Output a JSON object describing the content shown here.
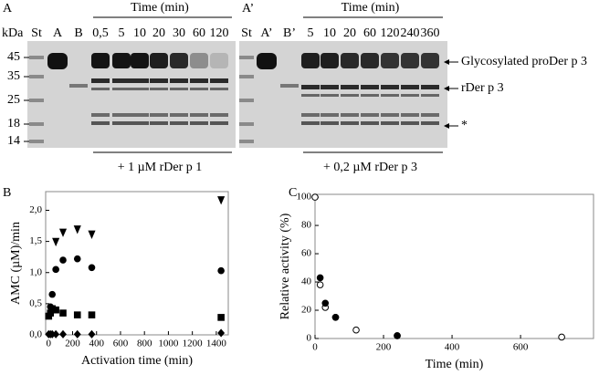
{
  "panels": {
    "A": {
      "label": "A",
      "kda": "kDa",
      "mw_markers": [
        "45",
        "35",
        "25",
        "18",
        "14"
      ],
      "time_header": "Time (min)",
      "lanes": [
        "St",
        "A",
        "B",
        "0,5",
        "5",
        "10",
        "20",
        "30",
        "60",
        "120"
      ],
      "treatment": "+ 1 µM rDer p 1"
    },
    "A_prime": {
      "label": "A’",
      "time_header": "Time (min)",
      "lanes": [
        "St",
        "A’",
        "B’",
        "5",
        "10",
        "20",
        "60",
        "120",
        "240",
        "360"
      ],
      "treatment": "+ 0,2 µM rDer p 3",
      "annotations": [
        "Glycosylated proDer p 3",
        "rDer p 3",
        "*"
      ]
    }
  },
  "chart_data": [
    {
      "type": "scatter",
      "panel_label": "B",
      "x_label": "Activation time (min)",
      "y_label": "AMC (µM)/min",
      "xlim": [
        -25,
        1500
      ],
      "ylim": [
        0,
        2.3
      ],
      "xticks": [
        0,
        200,
        400,
        600,
        800,
        1000,
        1200,
        1400
      ],
      "yticks": [
        {
          "value": 0,
          "label": "0,0"
        },
        {
          "value": 0.5,
          "label": "0,5"
        },
        {
          "value": 1,
          "label": "1,0"
        },
        {
          "value": 1.5,
          "label": "1,5"
        },
        {
          "value": 2,
          "label": "2,0"
        }
      ],
      "series": [
        {
          "marker": "triangle-down",
          "filled": true,
          "color": "#000000",
          "x": [
            60,
            120,
            240,
            360,
            1440
          ],
          "values": [
            1.5,
            1.65,
            1.7,
            1.62,
            2.17
          ]
        },
        {
          "marker": "circle",
          "filled": true,
          "color": "#000000",
          "x": [
            15,
            30,
            60,
            120,
            240,
            360,
            1440
          ],
          "values": [
            0.45,
            0.65,
            1.05,
            1.2,
            1.22,
            1.08,
            1.03
          ]
        },
        {
          "marker": "square",
          "filled": true,
          "color": "#000000",
          "x": [
            0,
            15,
            30,
            60,
            120,
            240,
            360,
            1440
          ],
          "values": [
            0.3,
            0.35,
            0.42,
            0.4,
            0.35,
            0.32,
            0.32,
            0.28
          ]
        },
        {
          "marker": "diamond",
          "filled": true,
          "color": "#000000",
          "x": [
            0,
            15,
            30,
            60,
            120,
            240,
            360,
            1440
          ],
          "values": [
            0.01,
            0.01,
            0.01,
            0.01,
            0.01,
            0.01,
            0.01,
            0.03
          ]
        }
      ]
    },
    {
      "type": "scatter",
      "panel_label": "C",
      "x_label": "Time (min)",
      "y_label": "Relative activity (%)",
      "xlim": [
        0,
        813
      ],
      "ylim": [
        0,
        102
      ],
      "xticks": [
        0,
        200,
        400,
        600
      ],
      "yticks": [
        0,
        20,
        40,
        60,
        80,
        100
      ],
      "series": [
        {
          "marker": "circle",
          "filled": false,
          "color": "#000000",
          "x": [
            0,
            15,
            30,
            60,
            120,
            240,
            720
          ],
          "values": [
            100,
            38,
            22,
            15,
            6,
            2,
            1
          ]
        },
        {
          "marker": "circle",
          "filled": true,
          "color": "#000000",
          "x": [
            15,
            30,
            60,
            240
          ],
          "values": [
            43,
            25,
            15,
            2
          ]
        }
      ]
    }
  ]
}
